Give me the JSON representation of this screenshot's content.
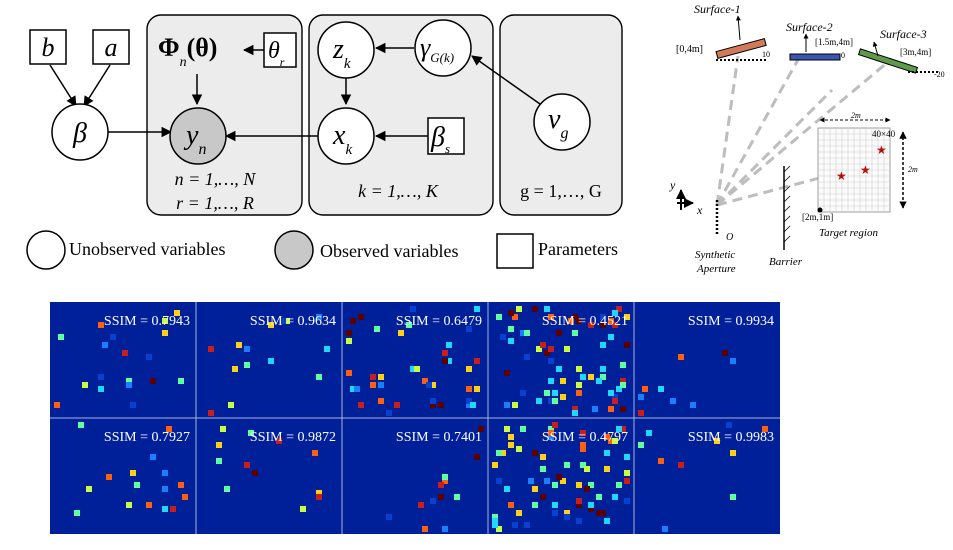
{
  "graphical_model": {
    "parameters": {
      "b": "b",
      "a": "a",
      "theta": "θ",
      "theta_sub": "r",
      "beta_s": "β",
      "beta_s_sub": "s"
    },
    "variables": {
      "beta": "β",
      "y": "y",
      "y_sub": "n",
      "z": "z",
      "z_sub": "k",
      "x": "x",
      "x_sub": "k",
      "gamma": "γ",
      "gamma_sub": "G(k)",
      "nu": "ν",
      "nu_sub": "g"
    },
    "phi_label": {
      "main": "Φ",
      "sub": "n",
      "arg": "(θ)"
    },
    "plates": {
      "n_plate": {
        "line1": "n = 1,…, N",
        "line2": "r = 1,…, R"
      },
      "k_plate": {
        "line1": "k = 1,…, K"
      },
      "g_plate": {
        "line1": "g = 1,…, G"
      }
    }
  },
  "legend": {
    "unobserved": "Unobserved variables",
    "observed": "Observed variables",
    "parameters": "Parameters"
  },
  "scene": {
    "surface1": "Surface-1",
    "surface1_coord": "[0,4m]",
    "surface1_num": "10",
    "surface2": "Surface-2",
    "surface2_coord": "[1.5m,4m]",
    "surface2_num": "0",
    "surface3": "Surface-3",
    "surface3_coord": "[3m,4m]",
    "surface3_num": "-20",
    "dim_top": "2m",
    "grid_size": "40×40",
    "dim_right": "2m",
    "corner": "[2m,1m]",
    "target_region": "Target region",
    "origin": "O",
    "aperture_line1": "Synthetic",
    "aperture_line2": "Aperture",
    "barrier": "Barrier",
    "axis_x": "x",
    "axis_y": "y",
    "colors": {
      "surface1": "#d07a5a",
      "surface2": "#3a56b0",
      "surface3": "#5f9a4a",
      "star": "#b51010",
      "beam": "#bdbdbd"
    }
  },
  "results": {
    "ssim_labels": [
      [
        "SSIM = 0.7943",
        "SSIM = 0.9634",
        "SSIM = 0.6479",
        "SSIM = 0.4521",
        "SSIM = 0.9934"
      ],
      [
        "SSIM = 0.7927",
        "SSIM = 0.9872",
        "SSIM = 0.7401",
        "SSIM = 0.4797",
        "SSIM = 0.9983"
      ]
    ],
    "colors": {
      "background": "#00209a",
      "grid_line": "#a8b2d6"
    }
  }
}
